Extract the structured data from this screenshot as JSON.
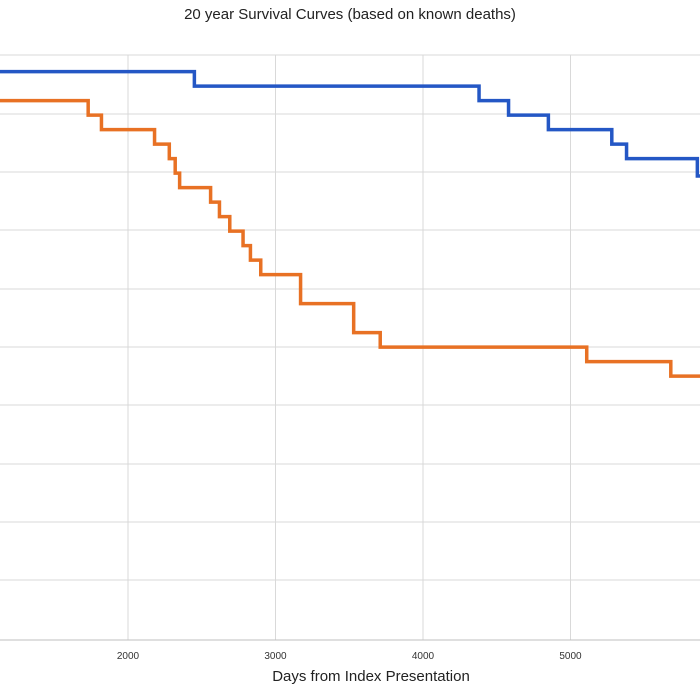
{
  "chart_data": {
    "type": "line",
    "step": true,
    "title": "20 year Survival Curves (based on known deaths)",
    "xlabel": "Days from Index Presentation",
    "ylabel": "",
    "x_ticks": [
      2000,
      3000,
      4000,
      5000
    ],
    "grid": true,
    "legend": "none",
    "series": [
      {
        "color": "#2457c5",
        "points": [
          [
            1000,
            98
          ],
          [
            2450,
            98
          ],
          [
            2450,
            95.5
          ],
          [
            4380,
            95.5
          ],
          [
            4380,
            93
          ],
          [
            4580,
            93
          ],
          [
            4580,
            90.5
          ],
          [
            4850,
            90.5
          ],
          [
            4850,
            88
          ],
          [
            5280,
            88
          ],
          [
            5280,
            85.5
          ],
          [
            5380,
            85.5
          ],
          [
            5380,
            83
          ],
          [
            5860,
            83
          ],
          [
            5860,
            80
          ],
          [
            5950,
            80
          ]
        ]
      },
      {
        "color": "#e87124",
        "points": [
          [
            1000,
            93
          ],
          [
            1730,
            93
          ],
          [
            1730,
            90.5
          ],
          [
            1820,
            90.5
          ],
          [
            1820,
            88
          ],
          [
            2180,
            88
          ],
          [
            2180,
            85.5
          ],
          [
            2280,
            85.5
          ],
          [
            2280,
            83
          ],
          [
            2320,
            83
          ],
          [
            2320,
            80.5
          ],
          [
            2350,
            80.5
          ],
          [
            2350,
            78
          ],
          [
            2560,
            78
          ],
          [
            2560,
            75.5
          ],
          [
            2620,
            75.5
          ],
          [
            2620,
            73
          ],
          [
            2690,
            73
          ],
          [
            2690,
            70.5
          ],
          [
            2780,
            70.5
          ],
          [
            2780,
            68
          ],
          [
            2830,
            68
          ],
          [
            2830,
            65.5
          ],
          [
            2900,
            65.5
          ],
          [
            2900,
            63
          ],
          [
            3170,
            63
          ],
          [
            3170,
            58
          ],
          [
            3530,
            58
          ],
          [
            3530,
            53
          ],
          [
            3710,
            53
          ],
          [
            3710,
            50.5
          ],
          [
            5110,
            50.5
          ],
          [
            5110,
            48
          ],
          [
            5680,
            48
          ],
          [
            5680,
            45.5
          ],
          [
            5950,
            45.5
          ]
        ]
      }
    ]
  }
}
